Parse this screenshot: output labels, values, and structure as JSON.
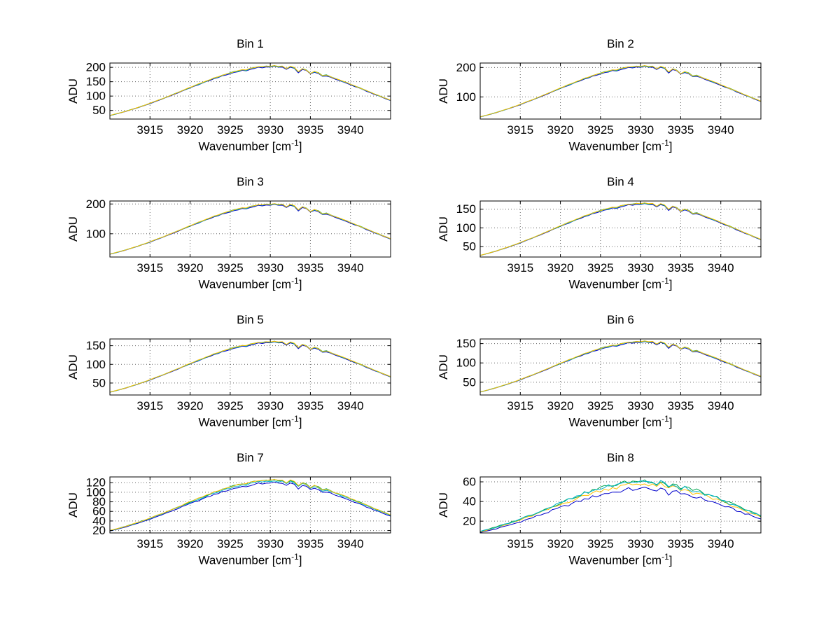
{
  "figure": {
    "background": "#ffffff"
  },
  "labels": {
    "ylabel": "ADU",
    "xlabel_prefix": "Wavenumber [cm",
    "xlabel_sup": "-1",
    "xlabel_suffix": "]"
  },
  "axis": {
    "xlim": [
      3910,
      3945
    ],
    "xticks": [
      3915,
      3920,
      3925,
      3930,
      3935,
      3940
    ],
    "xtick_labels": [
      "3915",
      "3920",
      "3925",
      "3930",
      "3935",
      "3940"
    ],
    "grid": true,
    "tick_direction": "in",
    "box": true
  },
  "shared_profile": {
    "description": "normalized spectral envelope common to all bins; y = peak_adu * series.scale * value",
    "x_start": 3910,
    "x_step": 0.5,
    "values": [
      0.16,
      0.176,
      0.194,
      0.212,
      0.231,
      0.252,
      0.273,
      0.295,
      0.318,
      0.341,
      0.366,
      0.391,
      0.417,
      0.443,
      0.469,
      0.497,
      0.524,
      0.551,
      0.579,
      0.607,
      0.635,
      0.662,
      0.689,
      0.716,
      0.742,
      0.768,
      0.793,
      0.817,
      0.84,
      0.862,
      0.882,
      0.902,
      0.915,
      0.94,
      0.93,
      0.958,
      0.968,
      0.988,
      0.985,
      1.0,
      0.99,
      1.005,
      0.992,
      1.0,
      0.955,
      0.99,
      0.97,
      0.9,
      0.955,
      0.93,
      0.875,
      0.905,
      0.885,
      0.835,
      0.845,
      0.817,
      0.793,
      0.768,
      0.742,
      0.716,
      0.689,
      0.662,
      0.635,
      0.607,
      0.579,
      0.551,
      0.524,
      0.497,
      0.469,
      0.443,
      0.417
    ]
  },
  "chart_data": [
    {
      "type": "line",
      "title": "Bin 1",
      "ylabel": "ADU",
      "xlabel": "Wavenumber [cm^-1]",
      "xlim": [
        3910,
        3945
      ],
      "ylim": [
        20,
        215
      ],
      "yticks": [
        50,
        100,
        150,
        200
      ],
      "ytick_labels": [
        "50",
        "100",
        "150",
        "200"
      ],
      "peak_adu": 205,
      "noise": 0.006,
      "grid": true,
      "legend": "none",
      "profile_ref": "shared_profile",
      "series": [
        {
          "name": "trace-blue",
          "color": "#0000cc",
          "scale": 0.985
        },
        {
          "name": "trace-cyan",
          "color": "#00b4c8",
          "scale": 0.995
        },
        {
          "name": "trace-green",
          "color": "#00a550",
          "scale": 1.0
        },
        {
          "name": "trace-yellow",
          "color": "#ffc000",
          "scale": 1.0
        }
      ]
    },
    {
      "type": "line",
      "title": "Bin 2",
      "ylabel": "ADU",
      "xlabel": "Wavenumber [cm^-1]",
      "xlim": [
        3910,
        3945
      ],
      "ylim": [
        25,
        215
      ],
      "yticks": [
        100,
        200
      ],
      "ytick_labels": [
        "100",
        "200"
      ],
      "peak_adu": 205,
      "noise": 0.006,
      "grid": true,
      "legend": "none",
      "profile_ref": "shared_profile",
      "series": [
        {
          "name": "trace-blue",
          "color": "#0000cc",
          "scale": 0.985
        },
        {
          "name": "trace-cyan",
          "color": "#00b4c8",
          "scale": 0.995
        },
        {
          "name": "trace-green",
          "color": "#00a550",
          "scale": 1.0
        },
        {
          "name": "trace-yellow",
          "color": "#ffc000",
          "scale": 1.0
        }
      ]
    },
    {
      "type": "line",
      "title": "Bin 3",
      "ylabel": "ADU",
      "xlabel": "Wavenumber [cm^-1]",
      "xlim": [
        3910,
        3945
      ],
      "ylim": [
        22,
        210
      ],
      "yticks": [
        100,
        200
      ],
      "ytick_labels": [
        "100",
        "200"
      ],
      "peak_adu": 200,
      "noise": 0.006,
      "grid": true,
      "legend": "none",
      "profile_ref": "shared_profile",
      "series": [
        {
          "name": "trace-blue",
          "color": "#0000cc",
          "scale": 0.985
        },
        {
          "name": "trace-cyan",
          "color": "#00b4c8",
          "scale": 0.995
        },
        {
          "name": "trace-green",
          "color": "#00a550",
          "scale": 1.0
        },
        {
          "name": "trace-yellow",
          "color": "#ffc000",
          "scale": 1.0
        }
      ]
    },
    {
      "type": "line",
      "title": "Bin 4",
      "ylabel": "ADU",
      "xlabel": "Wavenumber [cm^-1]",
      "xlim": [
        3910,
        3945
      ],
      "ylim": [
        22,
        172
      ],
      "yticks": [
        50,
        100,
        150
      ],
      "ytick_labels": [
        "50",
        "100",
        "150"
      ],
      "peak_adu": 166,
      "noise": 0.006,
      "grid": true,
      "legend": "none",
      "profile_ref": "shared_profile",
      "series": [
        {
          "name": "trace-blue",
          "color": "#0000cc",
          "scale": 0.985
        },
        {
          "name": "trace-cyan",
          "color": "#00b4c8",
          "scale": 0.995
        },
        {
          "name": "trace-green",
          "color": "#00a550",
          "scale": 1.0
        },
        {
          "name": "trace-yellow",
          "color": "#ffc000",
          "scale": 1.0
        }
      ]
    },
    {
      "type": "line",
      "title": "Bin 5",
      "ylabel": "ADU",
      "xlabel": "Wavenumber [cm^-1]",
      "xlim": [
        3910,
        3945
      ],
      "ylim": [
        18,
        168
      ],
      "yticks": [
        50,
        100,
        150
      ],
      "ytick_labels": [
        "50",
        "100",
        "150"
      ],
      "peak_adu": 161,
      "noise": 0.006,
      "grid": true,
      "legend": "none",
      "profile_ref": "shared_profile",
      "series": [
        {
          "name": "trace-blue",
          "color": "#0000cc",
          "scale": 0.985
        },
        {
          "name": "trace-cyan",
          "color": "#00b4c8",
          "scale": 0.995
        },
        {
          "name": "trace-green",
          "color": "#00a550",
          "scale": 1.0
        },
        {
          "name": "trace-yellow",
          "color": "#ffc000",
          "scale": 1.0
        }
      ]
    },
    {
      "type": "line",
      "title": "Bin 6",
      "ylabel": "ADU",
      "xlabel": "Wavenumber [cm^-1]",
      "xlim": [
        3910,
        3945
      ],
      "ylim": [
        17,
        162
      ],
      "yticks": [
        50,
        100,
        150
      ],
      "ytick_labels": [
        "50",
        "100",
        "150"
      ],
      "peak_adu": 156,
      "noise": 0.006,
      "grid": true,
      "legend": "none",
      "profile_ref": "shared_profile",
      "series": [
        {
          "name": "trace-blue",
          "color": "#0000cc",
          "scale": 0.985
        },
        {
          "name": "trace-cyan",
          "color": "#00b4c8",
          "scale": 0.995
        },
        {
          "name": "trace-green",
          "color": "#00a550",
          "scale": 1.0
        },
        {
          "name": "trace-yellow",
          "color": "#ffc000",
          "scale": 1.0
        }
      ]
    },
    {
      "type": "line",
      "title": "Bin 7",
      "ylabel": "ADU",
      "xlabel": "Wavenumber [cm^-1]",
      "xlim": [
        3910,
        3945
      ],
      "ylim": [
        15,
        132
      ],
      "yticks": [
        20,
        40,
        60,
        80,
        100,
        120
      ],
      "ytick_labels": [
        "20",
        "40",
        "60",
        "80",
        "100",
        "120"
      ],
      "peak_adu": 126,
      "noise": 0.012,
      "grid": true,
      "legend": "none",
      "profile_ref": "shared_profile",
      "series": [
        {
          "name": "trace-blue",
          "color": "#0000cc",
          "scale": 0.95
        },
        {
          "name": "trace-cyan",
          "color": "#00b4c8",
          "scale": 0.98
        },
        {
          "name": "trace-green",
          "color": "#00a550",
          "scale": 1.0
        },
        {
          "name": "trace-yellow",
          "color": "#ffc000",
          "scale": 1.0
        }
      ]
    },
    {
      "type": "line",
      "title": "Bin 8",
      "ylabel": "ADU",
      "xlabel": "Wavenumber [cm^-1]",
      "xlim": [
        3910,
        3945
      ],
      "ylim": [
        8,
        65
      ],
      "yticks": [
        20,
        40,
        60
      ],
      "ytick_labels": [
        "20",
        "40",
        "60"
      ],
      "peak_adu": 61,
      "noise": 0.035,
      "grid": true,
      "legend": "none",
      "profile_ref": "shared_profile",
      "series": [
        {
          "name": "trace-blue",
          "color": "#0000cc",
          "scale": 0.87
        },
        {
          "name": "trace-yellow",
          "color": "#ffc000",
          "scale": 0.95
        },
        {
          "name": "trace-green",
          "color": "#00a550",
          "scale": 1.0
        },
        {
          "name": "trace-cyan",
          "color": "#00b4c8",
          "scale": 0.99
        }
      ]
    }
  ]
}
